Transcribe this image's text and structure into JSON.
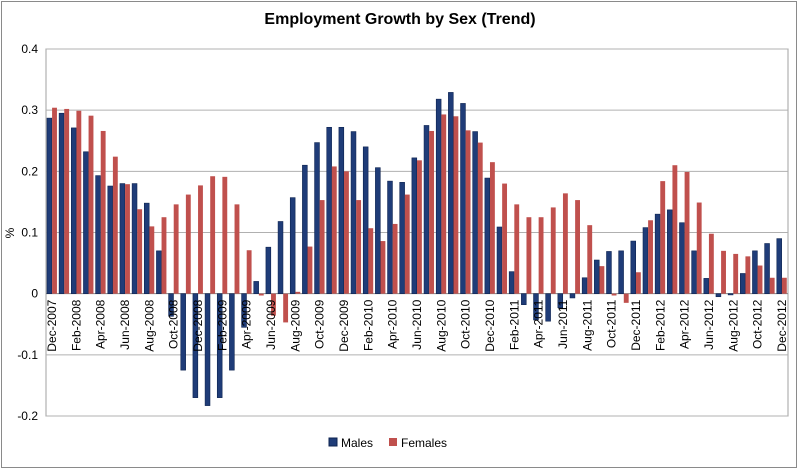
{
  "chart_data": {
    "type": "bar",
    "title": "Employment Growth by Sex (Trend)",
    "xlabel": "",
    "ylabel": "%",
    "ylim": [
      -0.2,
      0.4
    ],
    "yticks": [
      "-0.2",
      "-0.1",
      "0",
      "0.1",
      "0.2",
      "0.3",
      "0.4"
    ],
    "grid": true,
    "legend": "bottom",
    "categories": [
      "Dec-2007",
      "Jan-2008",
      "Feb-2008",
      "Mar-2008",
      "Apr-2008",
      "May-2008",
      "Jun-2008",
      "Jul-2008",
      "Aug-2008",
      "Sep-2008",
      "Oct-2008",
      "Nov-2008",
      "Dec-2008",
      "Jan-2009",
      "Feb-2009",
      "Mar-2009",
      "Apr-2009",
      "May-2009",
      "Jun-2009",
      "Jul-2009",
      "Aug-2009",
      "Sep-2009",
      "Oct-2009",
      "Nov-2009",
      "Dec-2009",
      "Jan-2010",
      "Feb-2010",
      "Mar-2010",
      "Apr-2010",
      "May-2010",
      "Jun-2010",
      "Jul-2010",
      "Aug-2010",
      "Sep-2010",
      "Oct-2010",
      "Nov-2010",
      "Dec-2010",
      "Jan-2011",
      "Feb-2011",
      "Mar-2011",
      "Apr-2011",
      "May-2011",
      "Jun-2011",
      "Jul-2011",
      "Aug-2011",
      "Sep-2011",
      "Oct-2011",
      "Nov-2011",
      "Dec-2011",
      "Jan-2012",
      "Feb-2012",
      "Mar-2012",
      "Apr-2012",
      "May-2012",
      "Jun-2012",
      "Jul-2012",
      "Aug-2012",
      "Sep-2012",
      "Oct-2012",
      "Nov-2012",
      "Dec-2012"
    ],
    "series": [
      {
        "name": "Males",
        "color": "#1f3c78",
        "values": [
          0.287,
          0.295,
          0.271,
          0.232,
          0.193,
          0.176,
          0.18,
          0.18,
          0.148,
          0.07,
          -0.037,
          -0.125,
          -0.17,
          -0.183,
          -0.17,
          -0.125,
          -0.055,
          0.02,
          0.076,
          0.118,
          0.157,
          0.21,
          0.247,
          0.272,
          0.272,
          0.265,
          0.24,
          0.206,
          0.184,
          0.182,
          0.222,
          0.275,
          0.318,
          0.329,
          0.311,
          0.265,
          0.189,
          0.109,
          0.036,
          -0.018,
          -0.043,
          -0.045,
          -0.023,
          -0.007,
          0.026,
          0.055,
          0.069,
          0.07,
          0.086,
          0.108,
          0.13,
          0.137,
          0.116,
          0.07,
          0.025,
          -0.005,
          -0.002,
          0.033,
          0.07,
          0.082,
          0.09
        ]
      },
      {
        "name": "Females",
        "color": "#c0504d",
        "values": [
          0.304,
          0.302,
          0.299,
          0.291,
          0.266,
          0.224,
          0.179,
          0.138,
          0.11,
          0.125,
          0.146,
          0.162,
          0.177,
          0.192,
          0.191,
          0.146,
          0.071,
          -0.003,
          -0.036,
          -0.047,
          0.003,
          0.077,
          0.153,
          0.208,
          0.2,
          0.153,
          0.107,
          0.086,
          0.114,
          0.162,
          0.218,
          0.266,
          0.293,
          0.29,
          0.267,
          0.247,
          0.215,
          0.18,
          0.146,
          0.125,
          0.125,
          0.141,
          0.164,
          0.153,
          0.112,
          0.045,
          -0.003,
          -0.015,
          0.035,
          0.12,
          0.184,
          0.21,
          0.199,
          0.149,
          0.098,
          0.07,
          0.065,
          0.061,
          0.046,
          0.026,
          0.026
        ]
      }
    ]
  }
}
